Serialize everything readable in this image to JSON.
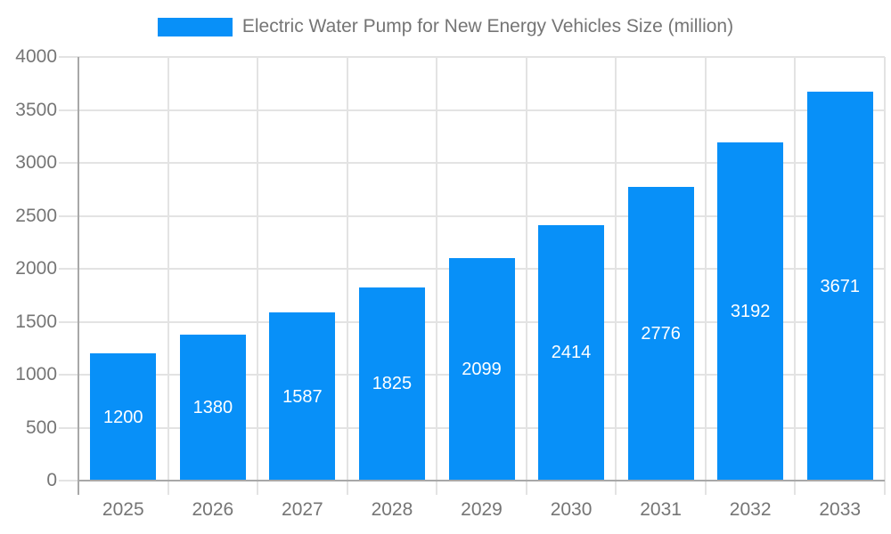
{
  "legend": {
    "label": "Electric Water Pump for New Energy Vehicles Size (million)",
    "swatch_icon": "series-color-swatch"
  },
  "colors": {
    "bar": "#0890f8",
    "grid": "#e3e3e3",
    "axis": "#a8a8a8",
    "tick_label": "#757575",
    "bar_label": "#ffffff",
    "background": "#ffffff"
  },
  "chart_data": {
    "type": "bar",
    "title": "Electric Water Pump for New Energy Vehicles Size (million)",
    "categories": [
      "2025",
      "2026",
      "2027",
      "2028",
      "2029",
      "2030",
      "2031",
      "2032",
      "2033"
    ],
    "values": [
      1200,
      1380,
      1587,
      1825,
      2099,
      2414,
      2776,
      3192,
      3671
    ],
    "value_labels": [
      "1200",
      "1380",
      "1587",
      "1825",
      "2099",
      "2414",
      "2776",
      "3192",
      "3671"
    ],
    "xlabel": "",
    "ylabel": "",
    "ylim": [
      0,
      4000
    ],
    "yticks": [
      0,
      500,
      1000,
      1500,
      2000,
      2500,
      3000,
      3500,
      4000
    ],
    "grid": true,
    "legend_position": "top",
    "value_label_position": "inside-center"
  }
}
